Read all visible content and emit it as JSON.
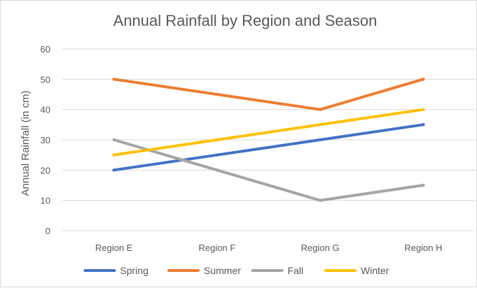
{
  "chart_data": {
    "type": "line",
    "title": "Annual Rainfall by Region and Season",
    "xlabel": "",
    "ylabel": "Annual Rainfall (in cm)",
    "ylim": [
      0,
      60
    ],
    "yticks": [
      0,
      10,
      20,
      30,
      40,
      50,
      60
    ],
    "grid": true,
    "legend_position": "bottom",
    "categories": [
      "Region E",
      "Region F",
      "Region G",
      "Region H"
    ],
    "series": [
      {
        "name": "Spring",
        "color": "#4472C4",
        "values": [
          20,
          25,
          30,
          35
        ]
      },
      {
        "name": "Summer",
        "color": "#ED7D31",
        "values": [
          50,
          45,
          40,
          50
        ]
      },
      {
        "name": "Fall",
        "color": "#A5A5A5",
        "values": [
          30,
          20,
          10,
          15
        ]
      },
      {
        "name": "Winter",
        "color": "#FFC000",
        "values": [
          25,
          30,
          35,
          40
        ]
      }
    ]
  }
}
